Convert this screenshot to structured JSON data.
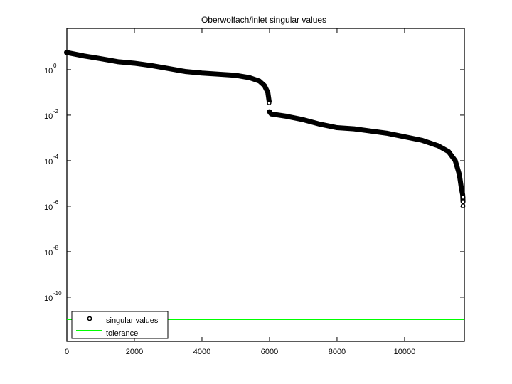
{
  "chart_data": {
    "type": "scatter",
    "title": "Oberwolfach/inlet singular values",
    "xlabel": "",
    "ylabel": "",
    "xlim": [
      0,
      11770
    ],
    "ylim_log10": [
      -11.94,
      1.81
    ],
    "yscale": "log",
    "grid": false,
    "legend_position": "lower left",
    "x_ticks": [
      0,
      2000,
      4000,
      6000,
      8000,
      10000
    ],
    "x_tick_labels": [
      "0",
      "2000",
      "4000",
      "6000",
      "8000",
      "10000"
    ],
    "y_ticks_log10": [
      0,
      -2,
      -4,
      -6,
      -8,
      -10
    ],
    "y_tick_labels": [
      "10^0",
      "10^-2",
      "10^-4",
      "10^-6",
      "10^-8",
      "10^-10"
    ],
    "series": [
      {
        "name": "singular values",
        "marker": "o",
        "color": "#000000",
        "x": [
          0,
          500,
          1000,
          1500,
          2000,
          2500,
          3000,
          3500,
          4000,
          4500,
          5000,
          5400,
          5700,
          5850,
          5950,
          5990,
          6000,
          6050,
          6500,
          7000,
          7500,
          8000,
          8500,
          9000,
          9500,
          10000,
          10500,
          11000,
          11300,
          11500,
          11620,
          11680,
          11720,
          11730
        ],
        "log10_values": [
          0.75,
          0.6,
          0.48,
          0.35,
          0.28,
          0.18,
          0.05,
          -0.08,
          -0.15,
          -0.2,
          -0.25,
          -0.35,
          -0.5,
          -0.7,
          -1.0,
          -1.4,
          -1.85,
          -1.95,
          -2.05,
          -2.2,
          -2.4,
          -2.55,
          -2.6,
          -2.7,
          -2.8,
          -2.95,
          -3.1,
          -3.35,
          -3.6,
          -4.0,
          -4.6,
          -5.2,
          -5.5,
          -5.8
        ]
      },
      {
        "name": "tolerance",
        "line": "solid",
        "color": "#00ff00",
        "x": [
          0,
          11770
        ],
        "log10_values": [
          -10.97,
          -10.97
        ]
      }
    ],
    "legend": [
      "singular values",
      "tolerance"
    ]
  },
  "figure": {
    "title": "Oberwolfach/inlet singular values",
    "legend": {
      "items": [
        {
          "label": "singular values"
        },
        {
          "label": "tolerance"
        }
      ]
    },
    "x_ticks": [
      "0",
      "2000",
      "4000",
      "6000",
      "8000",
      "10000"
    ],
    "y_ticks": [
      {
        "base": "10",
        "exp": "0"
      },
      {
        "base": "10",
        "exp": "-2"
      },
      {
        "base": "10",
        "exp": "-4"
      },
      {
        "base": "10",
        "exp": "-6"
      },
      {
        "base": "10",
        "exp": "-8"
      },
      {
        "base": "10",
        "exp": "-10"
      }
    ]
  }
}
